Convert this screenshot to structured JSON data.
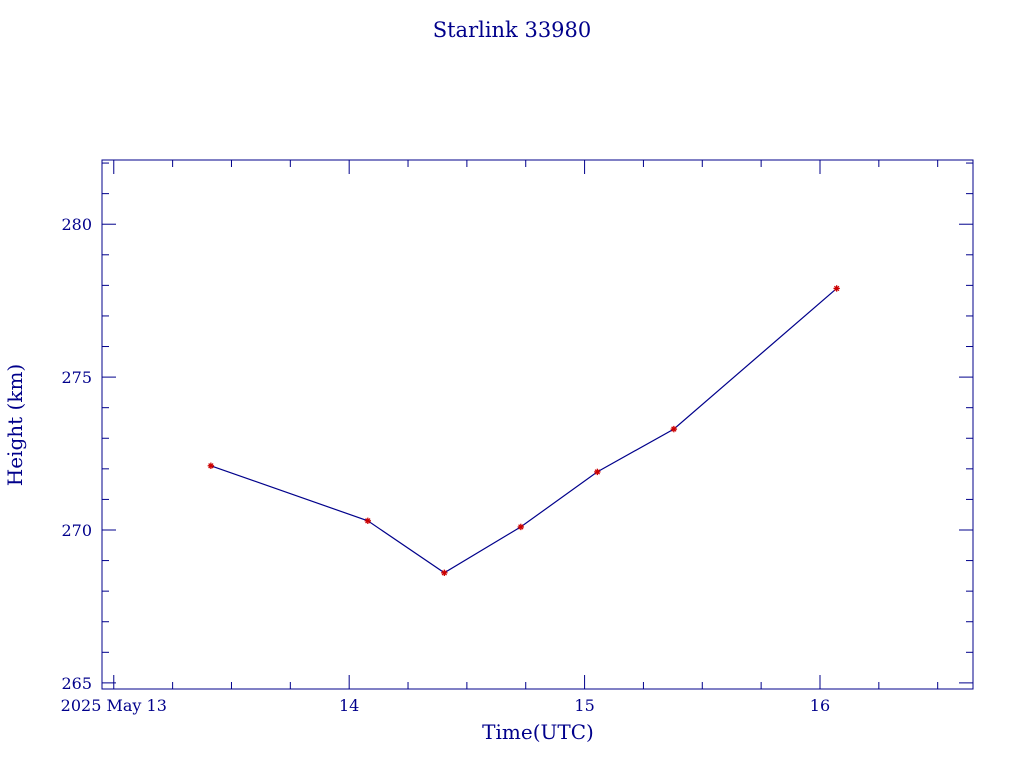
{
  "colors": {
    "axis": "#00008b",
    "line": "#00008b",
    "marker": "#cc0000",
    "background": "#ffffff"
  },
  "chart_data": {
    "type": "line",
    "title": "Starlink 33980",
    "xlabel": "Time(UTC)",
    "ylabel": "Height (km)",
    "xlim": [
      "2025-05-12T22:48",
      "2025-05-16T15:36"
    ],
    "ylim": [
      264.8,
      282.1
    ],
    "x_ticks": [
      {
        "value": "2025-05-13T00:00",
        "label": "2025 May 13"
      },
      {
        "value": "2025-05-14T00:00",
        "label": "14"
      },
      {
        "value": "2025-05-15T00:00",
        "label": "15"
      },
      {
        "value": "2025-05-16T00:00",
        "label": "16"
      }
    ],
    "x_minor_step_hours": 6,
    "y_ticks": [
      265,
      270,
      275,
      280
    ],
    "y_minor_step": 1,
    "grid": false,
    "legend": "none",
    "marker": "star",
    "series": [
      {
        "points": [
          {
            "x": "2025-05-13T09:54",
            "y": 272.1
          },
          {
            "x": "2025-05-14T01:54",
            "y": 270.3
          },
          {
            "x": "2025-05-14T09:42",
            "y": 268.6
          },
          {
            "x": "2025-05-14T17:30",
            "y": 270.1
          },
          {
            "x": "2025-05-15T01:18",
            "y": 271.9
          },
          {
            "x": "2025-05-15T09:06",
            "y": 273.3
          },
          {
            "x": "2025-05-16T01:42",
            "y": 277.9
          }
        ]
      }
    ]
  }
}
